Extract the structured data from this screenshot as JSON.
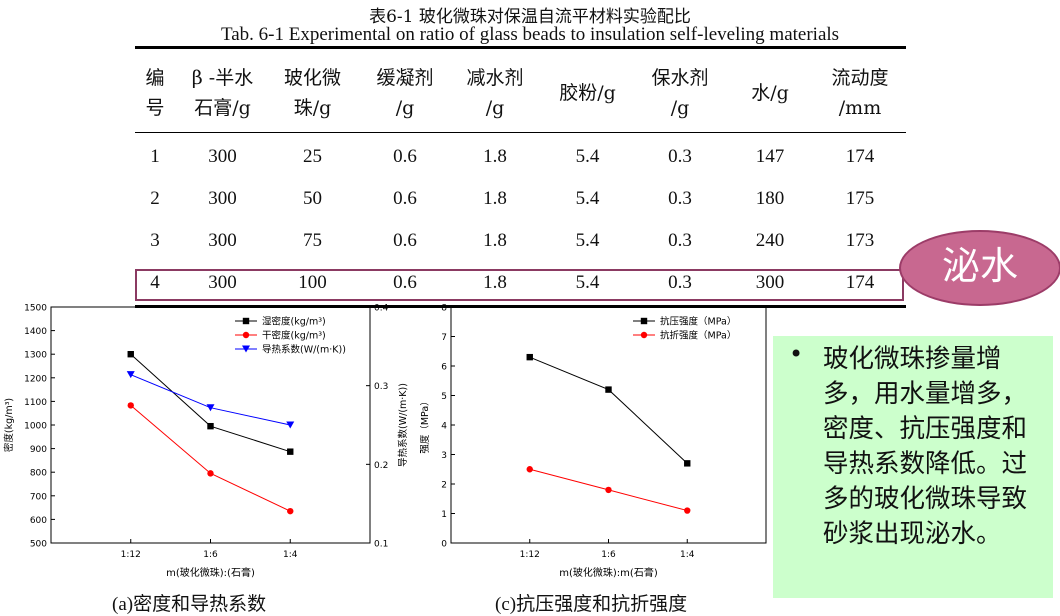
{
  "table": {
    "title_cn": "表6-1 玻化微珠对保温自流平材料实验配比",
    "title_en": "Tab. 6-1 Experimental on ratio of glass beads to insulation self-leveling materials",
    "headers": [
      "编\n号",
      "β -半水\n石膏/g",
      "玻化微\n珠/g",
      "缓凝剂\n/g",
      "减水剂\n/g",
      "胶粉/g",
      "保水剂\n/g",
      "水/g",
      "流动度\n/mm"
    ],
    "rows": [
      [
        "1",
        "300",
        "25",
        "0.6",
        "1.8",
        "5.4",
        "0.3",
        "147",
        "174"
      ],
      [
        "2",
        "300",
        "50",
        "0.6",
        "1.8",
        "5.4",
        "0.3",
        "180",
        "175"
      ],
      [
        "3",
        "300",
        "75",
        "0.6",
        "1.8",
        "5.4",
        "0.3",
        "240",
        "173"
      ],
      [
        "4",
        "300",
        "100",
        "0.6",
        "1.8",
        "5.4",
        "0.3",
        "300",
        "174"
      ]
    ],
    "highlight_row": 4
  },
  "callout": {
    "label": "泌水",
    "color": "#c86890"
  },
  "note": {
    "bullet": "•",
    "text": "玻化微珠掺量增多，用水量增多，密度、抗压强度和导热系数降低。过多的玻化微珠导致砂浆出现泌水。",
    "background": "#ccffcc"
  },
  "captions": {
    "a": "(a)密度和导热系数",
    "c": "(c)抗压强度和抗折强度"
  },
  "chart_data": [
    {
      "type": "line",
      "categories": [
        "1:12",
        "1:6",
        "1:4"
      ],
      "xlabel": "m(玻化微珠):(石膏)",
      "ylabel": "密度(kg/m³)",
      "y2label": "导热系数(W/(m·K))",
      "ylim": [
        500,
        1500
      ],
      "yticks": [
        500,
        600,
        700,
        800,
        900,
        1000,
        1100,
        1200,
        1300,
        1400,
        1500
      ],
      "y2lim": [
        0.1,
        0.4
      ],
      "y2ticks": [
        "0.1",
        "0.2",
        "0.3",
        "0.4"
      ],
      "legend_position": "top-right",
      "series": [
        {
          "name": "湿密度(kg/m³)",
          "values": [
            1300,
            995,
            887
          ],
          "color": "#000000",
          "marker": "square",
          "axis": "left"
        },
        {
          "name": "干密度(kg/m³)",
          "values": [
            1083,
            795,
            635
          ],
          "color": "#ff0000",
          "marker": "circle",
          "axis": "left"
        },
        {
          "name": "导热系数(W/(m·K))",
          "values": [
            0.314,
            0.272,
            0.25
          ],
          "color": "#0000ff",
          "marker": "triangle-down",
          "axis": "right"
        }
      ]
    },
    {
      "type": "line",
      "categories": [
        "1:12",
        "1:6",
        "1:4"
      ],
      "xlabel": "m(玻化微珠):m(石膏)",
      "ylabel": "强度（MPa）",
      "ylim": [
        0,
        8
      ],
      "yticks": [
        0,
        1,
        2,
        3,
        4,
        5,
        6,
        7,
        8
      ],
      "legend_position": "top-left",
      "series": [
        {
          "name": "抗压强度（MPa）",
          "values": [
            6.3,
            5.2,
            2.7
          ],
          "color": "#000000",
          "marker": "square",
          "axis": "left"
        },
        {
          "name": "抗折强度（MPa）",
          "values": [
            2.5,
            1.8,
            1.1
          ],
          "color": "#ff0000",
          "marker": "circle",
          "axis": "left"
        }
      ]
    }
  ]
}
